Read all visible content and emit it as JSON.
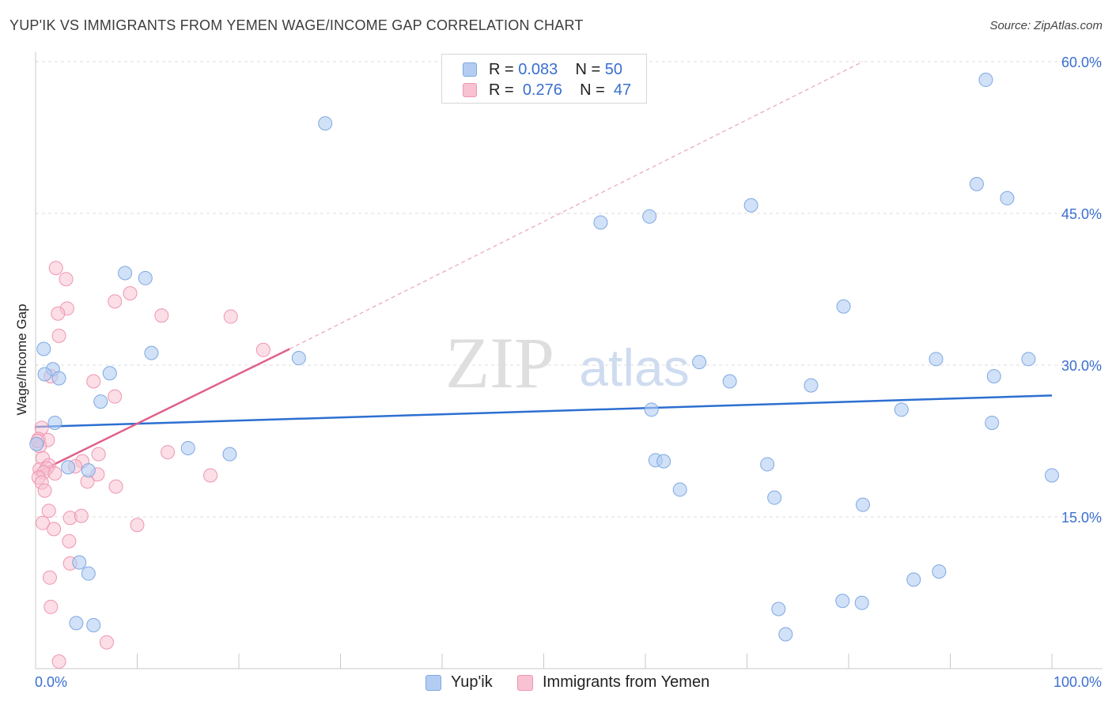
{
  "title": "YUP'IK VS IMMIGRANTS FROM YEMEN WAGE/INCOME GAP CORRELATION CHART",
  "source": "Source: ZipAtlas.com",
  "watermark": {
    "zip": "ZIP",
    "atlas": "atlas"
  },
  "legend_stats": [
    {
      "r_label": "R =",
      "r_value": "0.083",
      "n_label": "N =",
      "n_value": "50"
    },
    {
      "r_label": "R =",
      "r_value": "0.276",
      "n_label": "N =",
      "n_value": "47"
    }
  ],
  "legend_bottom": [
    "Yup'ik",
    "Immigrants from Yemen"
  ],
  "colors": {
    "blue_fill": "#b3cdf2",
    "blue_stroke": "#7ea8e3",
    "blue_line": "#2c6fd1",
    "pink_fill": "#f8c2d2",
    "pink_stroke": "#f095b1",
    "pink_line": "#e0608c",
    "tick_text": "#3a6fd0",
    "grid": "#dedede"
  },
  "chart_data": {
    "type": "scatter",
    "title": "YUP'IK VS IMMIGRANTS FROM YEMEN WAGE/INCOME GAP CORRELATION CHART",
    "xlabel": "",
    "ylabel": "Wage/Income Gap",
    "xlim": [
      0,
      100
    ],
    "ylim": [
      0,
      60
    ],
    "x_tick_labels": [
      "0.0%",
      "100.0%"
    ],
    "y_ticks": [
      15,
      30,
      45,
      60
    ],
    "y_tick_labels": [
      "15.0%",
      "30.0%",
      "45.0%",
      "60.0%"
    ],
    "series": [
      {
        "name": "Yup'ik",
        "r": 0.083,
        "n": 50,
        "trend": {
          "x": [
            0,
            100
          ],
          "y": [
            23.9,
            27.0
          ],
          "dashed_extension": false
        },
        "points": [
          [
            28.5,
            53.9
          ],
          [
            93.5,
            58.2
          ],
          [
            92.6,
            47.9
          ],
          [
            95.6,
            46.5
          ],
          [
            70.4,
            45.8
          ],
          [
            55.6,
            44.1
          ],
          [
            60.4,
            44.7
          ],
          [
            8.8,
            39.1
          ],
          [
            10.8,
            38.6
          ],
          [
            79.5,
            35.8
          ],
          [
            0.8,
            31.6
          ],
          [
            11.4,
            31.2
          ],
          [
            25.9,
            30.7
          ],
          [
            65.3,
            30.3
          ],
          [
            88.6,
            30.6
          ],
          [
            97.7,
            30.6
          ],
          [
            1.7,
            29.6
          ],
          [
            7.3,
            29.2
          ],
          [
            0.9,
            29.1
          ],
          [
            2.3,
            28.7
          ],
          [
            68.3,
            28.4
          ],
          [
            76.3,
            28.0
          ],
          [
            94.3,
            28.9
          ],
          [
            6.4,
            26.4
          ],
          [
            60.6,
            25.6
          ],
          [
            85.2,
            25.6
          ],
          [
            1.9,
            24.3
          ],
          [
            94.1,
            24.3
          ],
          [
            0.1,
            22.2
          ],
          [
            15.0,
            21.8
          ],
          [
            19.1,
            21.2
          ],
          [
            61.0,
            20.6
          ],
          [
            61.8,
            20.5
          ],
          [
            72.0,
            20.2
          ],
          [
            3.2,
            19.9
          ],
          [
            5.2,
            19.6
          ],
          [
            100.0,
            19.1
          ],
          [
            63.4,
            17.7
          ],
          [
            72.7,
            16.9
          ],
          [
            81.4,
            16.2
          ],
          [
            4.3,
            10.5
          ],
          [
            5.2,
            9.4
          ],
          [
            86.4,
            8.8
          ],
          [
            88.9,
            9.6
          ],
          [
            79.4,
            6.7
          ],
          [
            81.3,
            6.5
          ],
          [
            73.1,
            5.9
          ],
          [
            4.0,
            4.5
          ],
          [
            5.7,
            4.3
          ],
          [
            73.8,
            3.4
          ]
        ]
      },
      {
        "name": "Immigrants from Yemen",
        "r": 0.276,
        "n": 47,
        "trend": {
          "x": [
            0,
            25
          ],
          "y": [
            19.3,
            31.6
          ],
          "dashed_extension_to": [
            81.4,
            60.0
          ]
        },
        "points": [
          [
            2.0,
            39.6
          ],
          [
            3.0,
            38.5
          ],
          [
            7.8,
            36.3
          ],
          [
            9.3,
            37.1
          ],
          [
            3.1,
            35.6
          ],
          [
            2.2,
            35.1
          ],
          [
            12.4,
            34.9
          ],
          [
            19.2,
            34.8
          ],
          [
            2.3,
            32.9
          ],
          [
            22.4,
            31.5
          ],
          [
            1.5,
            28.9
          ],
          [
            5.7,
            28.4
          ],
          [
            7.8,
            26.9
          ],
          [
            0.6,
            23.8
          ],
          [
            0.3,
            22.7
          ],
          [
            1.2,
            22.6
          ],
          [
            0.4,
            22.0
          ],
          [
            13.0,
            21.4
          ],
          [
            6.2,
            21.2
          ],
          [
            0.7,
            20.8
          ],
          [
            4.6,
            20.5
          ],
          [
            1.3,
            20.1
          ],
          [
            3.9,
            20.0
          ],
          [
            0.4,
            19.7
          ],
          [
            1.1,
            19.8
          ],
          [
            0.8,
            19.4
          ],
          [
            1.9,
            19.3
          ],
          [
            6.1,
            19.2
          ],
          [
            17.2,
            19.1
          ],
          [
            0.3,
            18.9
          ],
          [
            0.6,
            18.4
          ],
          [
            5.1,
            18.5
          ],
          [
            7.9,
            18.0
          ],
          [
            0.9,
            17.6
          ],
          [
            1.3,
            15.6
          ],
          [
            3.4,
            14.9
          ],
          [
            4.5,
            15.1
          ],
          [
            0.7,
            14.4
          ],
          [
            1.8,
            13.8
          ],
          [
            10.0,
            14.2
          ],
          [
            3.3,
            12.6
          ],
          [
            3.4,
            10.4
          ],
          [
            1.4,
            9.0
          ],
          [
            1.5,
            6.1
          ],
          [
            7.0,
            2.6
          ],
          [
            2.3,
            0.7
          ],
          [
            0.2,
            22.5
          ]
        ]
      }
    ]
  }
}
